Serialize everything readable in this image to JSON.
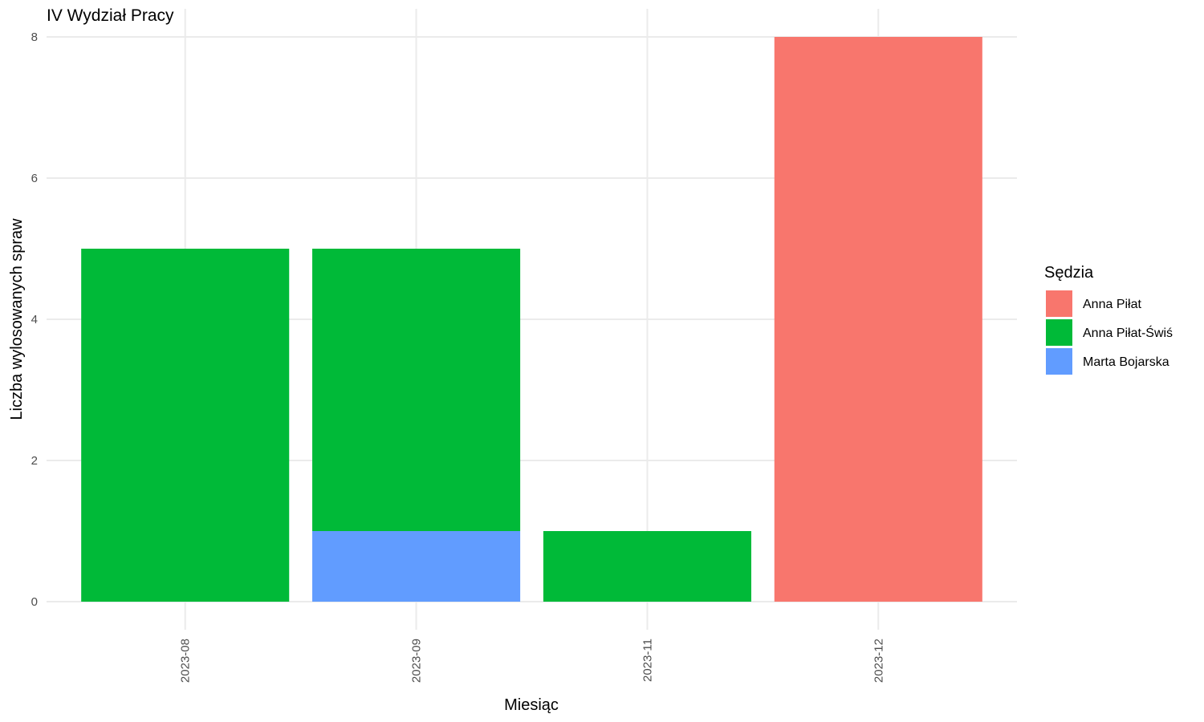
{
  "chart_data": {
    "type": "bar",
    "stacked": true,
    "title": "IV Wydział Pracy",
    "xlabel": "Miesiąc",
    "ylabel": "Liczba wylosowanych spraw",
    "categories": [
      "2023-08",
      "2023-09",
      "2023-11",
      "2023-12"
    ],
    "ylim": [
      0,
      8
    ],
    "yticks": [
      0,
      2,
      4,
      6,
      8
    ],
    "grid": true,
    "legend": {
      "title": "Sędzia",
      "position": "right",
      "entries": [
        "Anna Piłat",
        "Anna Piłat-Świś",
        "Marta Bojarska"
      ]
    },
    "series": [
      {
        "name": "Anna Piłat",
        "color": "#F8766D",
        "values": [
          0,
          0,
          0,
          8
        ]
      },
      {
        "name": "Anna Piłat-Świś",
        "color": "#00BA38",
        "values": [
          5,
          4,
          1,
          0
        ]
      },
      {
        "name": "Marta Bojarska",
        "color": "#619CFF",
        "values": [
          0,
          1,
          0,
          0
        ]
      }
    ]
  }
}
